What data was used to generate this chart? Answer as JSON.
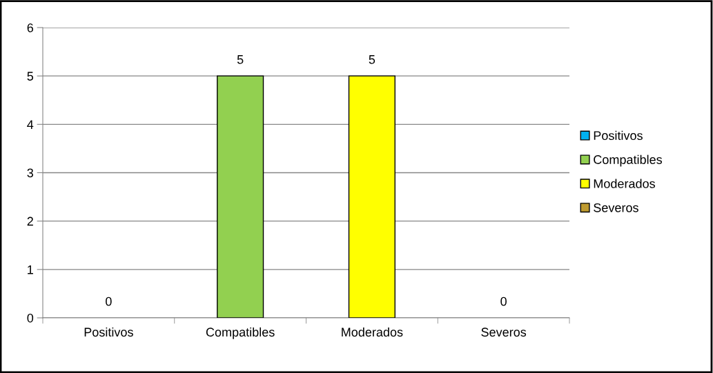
{
  "chart_data": {
    "type": "bar",
    "categories": [
      "Positivos",
      "Compatibles",
      "Moderados",
      "Severos"
    ],
    "series": [
      {
        "name": "Positivos",
        "color": "#00b0f0",
        "values": [
          0,
          null,
          null,
          null
        ]
      },
      {
        "name": "Compatibles",
        "color": "#92d050",
        "values": [
          null,
          5,
          null,
          null
        ]
      },
      {
        "name": "Moderados",
        "color": "#ffff00",
        "values": [
          null,
          null,
          5,
          null
        ]
      },
      {
        "name": "Severos",
        "color": "#bf9b30",
        "values": [
          null,
          null,
          null,
          0
        ]
      }
    ],
    "ylim": [
      0,
      6
    ],
    "yticks": [
      0,
      1,
      2,
      3,
      4,
      5,
      6
    ],
    "grid": "y",
    "legend": "right",
    "data_labels": true
  }
}
